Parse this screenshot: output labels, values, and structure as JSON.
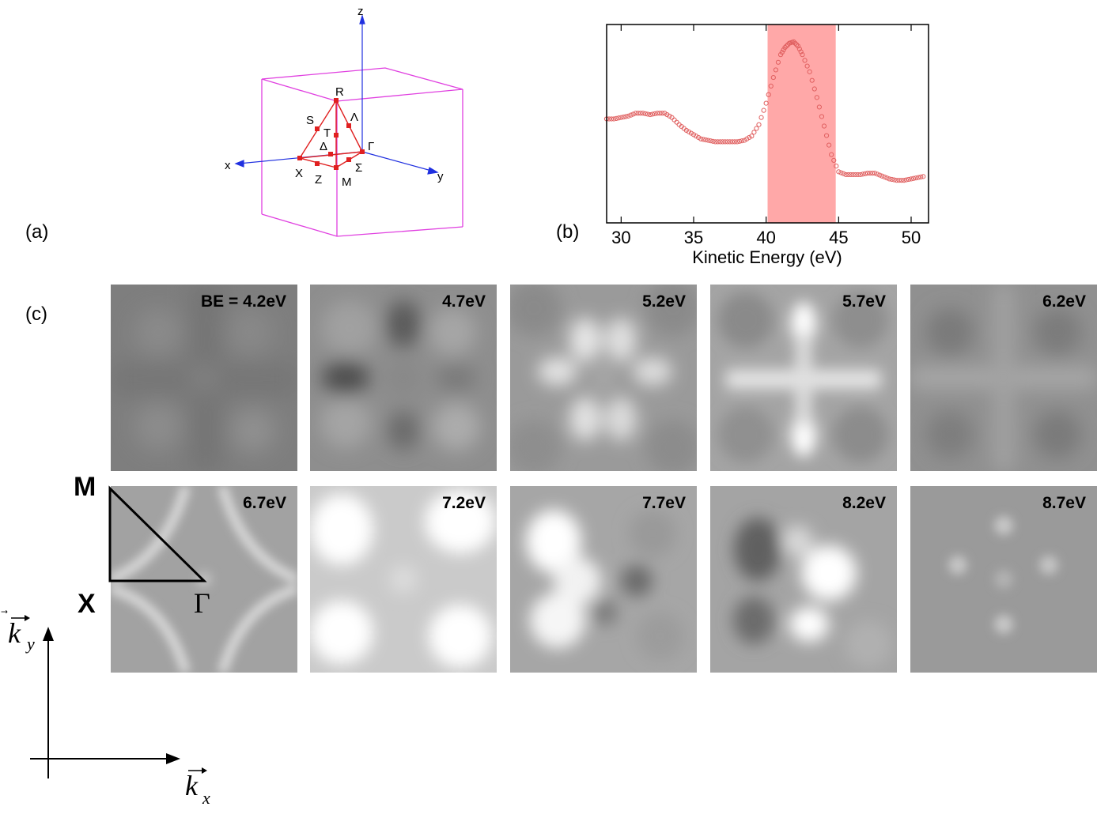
{
  "panel_labels": {
    "a": "(a)",
    "b": "(b)",
    "c": "(c)"
  },
  "brillouin_zone": {
    "axes": {
      "x": "x",
      "y": "y",
      "z": "z"
    },
    "points": {
      "R": "R",
      "S": "S",
      "T": "T",
      "Lambda": "Λ",
      "Delta": "Δ",
      "Gamma": "Γ",
      "X": "X",
      "Z": "Z",
      "M": "M",
      "Sigma": "Σ"
    },
    "colors": {
      "box": "#e040e0",
      "tetra": "#e02020",
      "axis": "#2030e0"
    }
  },
  "chart_data": {
    "type": "scatter",
    "xlabel": "Kinetic Energy (eV)",
    "ylabel": "",
    "xlim": [
      29,
      51.2
    ],
    "ylim": [
      0,
      1
    ],
    "xticks": [
      30,
      35,
      40,
      45,
      50
    ],
    "highlight_band": {
      "from": 40.1,
      "to": 44.8,
      "color": "#ffa8a8"
    },
    "marker_color": "#e06060",
    "series": [
      {
        "x": [
          29,
          29.5,
          30,
          30.5,
          31,
          31.5,
          32,
          32.5,
          33,
          33.5,
          34,
          34.5,
          35,
          35.5,
          36,
          36.5,
          37,
          37.5,
          38,
          38.5,
          39,
          39.5,
          40,
          40.5,
          41,
          41.3,
          41.6,
          41.9,
          42.2,
          42.5,
          43,
          43.5,
          44,
          44.5,
          45,
          45.5,
          46,
          46.5,
          47,
          47.5,
          48,
          48.5,
          49,
          49.5,
          50,
          50.5,
          51
        ],
        "values": [
          0.45,
          0.45,
          0.46,
          0.47,
          0.49,
          0.49,
          0.48,
          0.49,
          0.49,
          0.46,
          0.41,
          0.37,
          0.34,
          0.31,
          0.3,
          0.29,
          0.29,
          0.29,
          0.29,
          0.3,
          0.33,
          0.41,
          0.56,
          0.74,
          0.9,
          0.95,
          0.98,
          0.99,
          0.96,
          0.9,
          0.78,
          0.6,
          0.4,
          0.2,
          0.08,
          0.06,
          0.06,
          0.06,
          0.07,
          0.07,
          0.05,
          0.03,
          0.02,
          0.02,
          0.03,
          0.04,
          0.05
        ]
      }
    ]
  },
  "maps": [
    {
      "label": "BE = 4.2eV"
    },
    {
      "label": "4.7eV"
    },
    {
      "label": "5.2eV"
    },
    {
      "label": "5.7eV"
    },
    {
      "label": "6.2eV"
    },
    {
      "label": "6.7eV"
    },
    {
      "label": "7.2eV"
    },
    {
      "label": "7.7eV"
    },
    {
      "label": "8.2eV"
    },
    {
      "label": "8.7eV"
    }
  ],
  "wedge": {
    "top": "M",
    "left": "X",
    "right": "Γ"
  },
  "kaxes": {
    "ky_base": "k",
    "ky_sub": "y",
    "kx_base": "k",
    "kx_sub": "x"
  }
}
